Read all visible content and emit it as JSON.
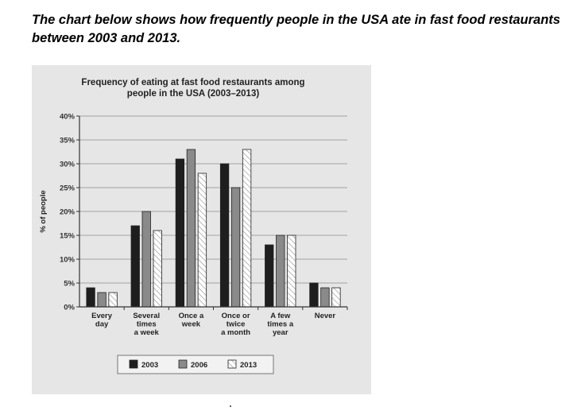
{
  "heading": "The chart below shows how frequently people in the USA ate in fast food restaurants between 2003 and 2013.",
  "chart_data": {
    "type": "bar",
    "title_lines": [
      "Frequency of eating at fast food restaurants among",
      "people in the USA (2003–2013)"
    ],
    "ylabel": "% of people",
    "xlabel": "",
    "ylim": [
      0,
      40
    ],
    "yticks": [
      "0%",
      "5%",
      "10%",
      "15%",
      "20%",
      "25%",
      "30%",
      "35%",
      "40%"
    ],
    "grid": "horizontal",
    "legend_position": "bottom",
    "categories": [
      [
        "Every",
        "day"
      ],
      [
        "Several",
        "times",
        "a week"
      ],
      [
        "Once a",
        "week"
      ],
      [
        "Once or",
        "twice",
        "a month"
      ],
      [
        "A few",
        "times a",
        "year"
      ],
      [
        "Never"
      ]
    ],
    "series": [
      {
        "name": "2003",
        "values": [
          4,
          17,
          31,
          30,
          13,
          5
        ],
        "color": "#1e1e1e"
      },
      {
        "name": "2006",
        "values": [
          3,
          20,
          33,
          25,
          15,
          4
        ],
        "color": "#8a8a8a"
      },
      {
        "name": "2013",
        "values": [
          3,
          16,
          28,
          33,
          15,
          4
        ],
        "color": "hatched"
      }
    ]
  }
}
